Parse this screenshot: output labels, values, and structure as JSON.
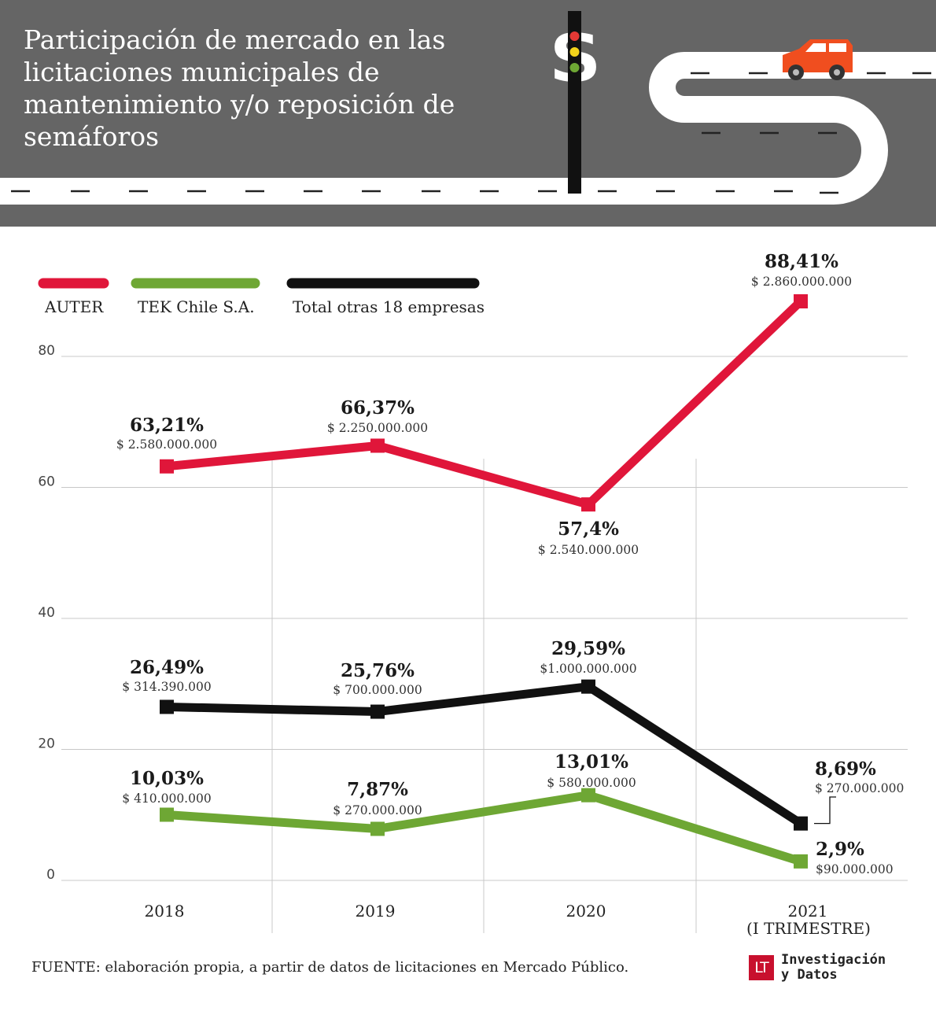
{
  "header": {
    "title": "Participación de mercado en las licitaciones municipales de mantenimiento y/o reposición de semáforos",
    "dollar_glyph": "$"
  },
  "legend": [
    {
      "label": "AUTER",
      "color": "#e0163a"
    },
    {
      "label": "TEK Chile S.A.",
      "color": "#6ea734"
    },
    {
      "label": "Total otras 18 empresas",
      "color": "#111111"
    }
  ],
  "chart_data": {
    "type": "line",
    "categories": [
      "2018",
      "2019",
      "2020",
      "2021"
    ],
    "category_sublabels": [
      "",
      "",
      "",
      "(I TRIMESTRE)"
    ],
    "ylim": [
      0,
      80
    ],
    "yticks": [
      0,
      20,
      40,
      60,
      80
    ],
    "grid": true,
    "legend_position": "top-left",
    "series": [
      {
        "name": "AUTER",
        "color": "#e0163a",
        "values": [
          63.21,
          66.37,
          57.4,
          88.41
        ],
        "labels": [
          "63,21%",
          "66,37%",
          "57,4%",
          "88,41%"
        ],
        "amounts": [
          "$ 2.580.000.000",
          "$ 2.250.000.000",
          "$ 2.540.000.000",
          "$ 2.860.000.000"
        ]
      },
      {
        "name": "TEK Chile S.A.",
        "color": "#6ea734",
        "values": [
          10.03,
          7.87,
          13.01,
          2.9
        ],
        "labels": [
          "10,03%",
          "7,87%",
          "13,01%",
          "2,9%"
        ],
        "amounts": [
          "$ 410.000.000",
          "$ 270.000.000",
          "$ 580.000.000",
          "$90.000.000"
        ]
      },
      {
        "name": "Total otras 18 empresas",
        "color": "#111111",
        "values": [
          26.49,
          25.76,
          29.59,
          8.69
        ],
        "labels": [
          "26,49%",
          "25,76%",
          "29,59%",
          "8,69%"
        ],
        "amounts": [
          "$ 314.390.000",
          "$ 700.000.000",
          "$1.000.000.000",
          "$ 270.000.000"
        ]
      }
    ]
  },
  "footer": {
    "source": "FUENTE: elaboración propia, a partir de datos de licitaciones en Mercado Público.",
    "brand_logo": "LT",
    "brand_line1": "Investigación",
    "brand_line2": "y Datos"
  }
}
